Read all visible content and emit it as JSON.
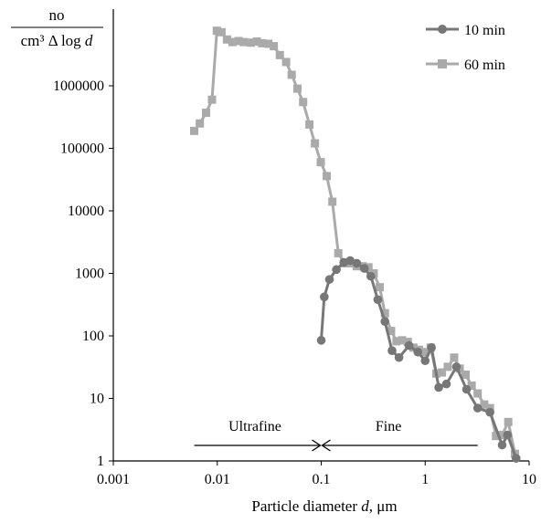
{
  "chart_data": {
    "type": "line",
    "title": "",
    "ylabel_numerator": "no",
    "ylabel_denominator_pre": "cm³ Δ log ",
    "ylabel_denominator_var": "d",
    "xlabel_pre": "Particle diameter ",
    "xlabel_var": "d",
    "xlabel_post": ", μm",
    "x_scale": "log",
    "y_scale": "log",
    "xlim": [
      0.001,
      10
    ],
    "ylim": [
      1,
      10000000
    ],
    "x_ticks": [
      "0.001",
      "0.01",
      "0.1",
      "1",
      "10"
    ],
    "y_ticks": [
      "1",
      "10",
      "100",
      "1000",
      "10000",
      "100000",
      "1000000"
    ],
    "grid": false,
    "legend_position": "top-right",
    "series": [
      {
        "name": "10 min",
        "color": "#777777",
        "marker": "circle",
        "points": [
          [
            0.1,
            85
          ],
          [
            0.107,
            420
          ],
          [
            0.12,
            800
          ],
          [
            0.14,
            1150
          ],
          [
            0.165,
            1500
          ],
          [
            0.19,
            1600
          ],
          [
            0.22,
            1450
          ],
          [
            0.26,
            1200
          ],
          [
            0.3,
            900
          ],
          [
            0.35,
            380
          ],
          [
            0.41,
            170
          ],
          [
            0.48,
            58
          ],
          [
            0.56,
            45
          ],
          [
            0.7,
            70
          ],
          [
            0.85,
            55
          ],
          [
            1.0,
            40
          ],
          [
            1.15,
            65
          ],
          [
            1.35,
            15
          ],
          [
            1.6,
            17
          ],
          [
            2.0,
            32
          ],
          [
            2.5,
            14
          ],
          [
            3.2,
            7
          ],
          [
            4.2,
            6
          ],
          [
            5.5,
            1.8
          ],
          [
            6.2,
            2.6
          ],
          [
            7.5,
            1.1
          ]
        ]
      },
      {
        "name": "60 min",
        "color": "#aaaaaa",
        "marker": "square",
        "points": [
          [
            0.006,
            190000
          ],
          [
            0.0068,
            250000
          ],
          [
            0.0078,
            370000
          ],
          [
            0.0089,
            600000
          ],
          [
            0.0099,
            7600000
          ],
          [
            0.011,
            7200000
          ],
          [
            0.0124,
            5500000
          ],
          [
            0.014,
            5000000
          ],
          [
            0.016,
            5200000
          ],
          [
            0.018,
            5000000
          ],
          [
            0.021,
            4900000
          ],
          [
            0.024,
            5100000
          ],
          [
            0.027,
            4800000
          ],
          [
            0.031,
            4700000
          ],
          [
            0.035,
            4300000
          ],
          [
            0.04,
            3100000
          ],
          [
            0.046,
            2400000
          ],
          [
            0.052,
            1500000
          ],
          [
            0.059,
            900000
          ],
          [
            0.067,
            550000
          ],
          [
            0.077,
            240000
          ],
          [
            0.087,
            120000
          ],
          [
            0.099,
            60000
          ],
          [
            0.113,
            36000
          ],
          [
            0.128,
            14000
          ],
          [
            0.146,
            2100
          ],
          [
            0.167,
            1450
          ],
          [
            0.19,
            1450
          ],
          [
            0.22,
            1300
          ],
          [
            0.25,
            1300
          ],
          [
            0.285,
            1250
          ],
          [
            0.32,
            1000
          ],
          [
            0.365,
            600
          ],
          [
            0.41,
            230
          ],
          [
            0.47,
            120
          ],
          [
            0.53,
            82
          ],
          [
            0.6,
            85
          ],
          [
            0.68,
            80
          ],
          [
            0.77,
            65
          ],
          [
            0.87,
            60
          ],
          [
            0.99,
            55
          ],
          [
            1.13,
            65
          ],
          [
            1.28,
            25
          ],
          [
            1.45,
            26
          ],
          [
            1.65,
            32
          ],
          [
            1.9,
            45
          ],
          [
            2.15,
            30
          ],
          [
            2.45,
            24
          ],
          [
            2.8,
            16
          ],
          [
            3.2,
            12
          ],
          [
            3.7,
            8
          ],
          [
            4.2,
            7
          ],
          [
            4.8,
            2.5
          ],
          [
            5.5,
            2.6
          ],
          [
            6.3,
            4.2
          ],
          [
            7.3,
            1.3
          ]
        ]
      }
    ],
    "annotations": {
      "ultrafine_label": "Ultrafine",
      "fine_label": "Fine",
      "ultrafine_range": [
        0.006,
        0.1
      ],
      "fine_range": [
        0.1,
        3.2
      ]
    }
  }
}
